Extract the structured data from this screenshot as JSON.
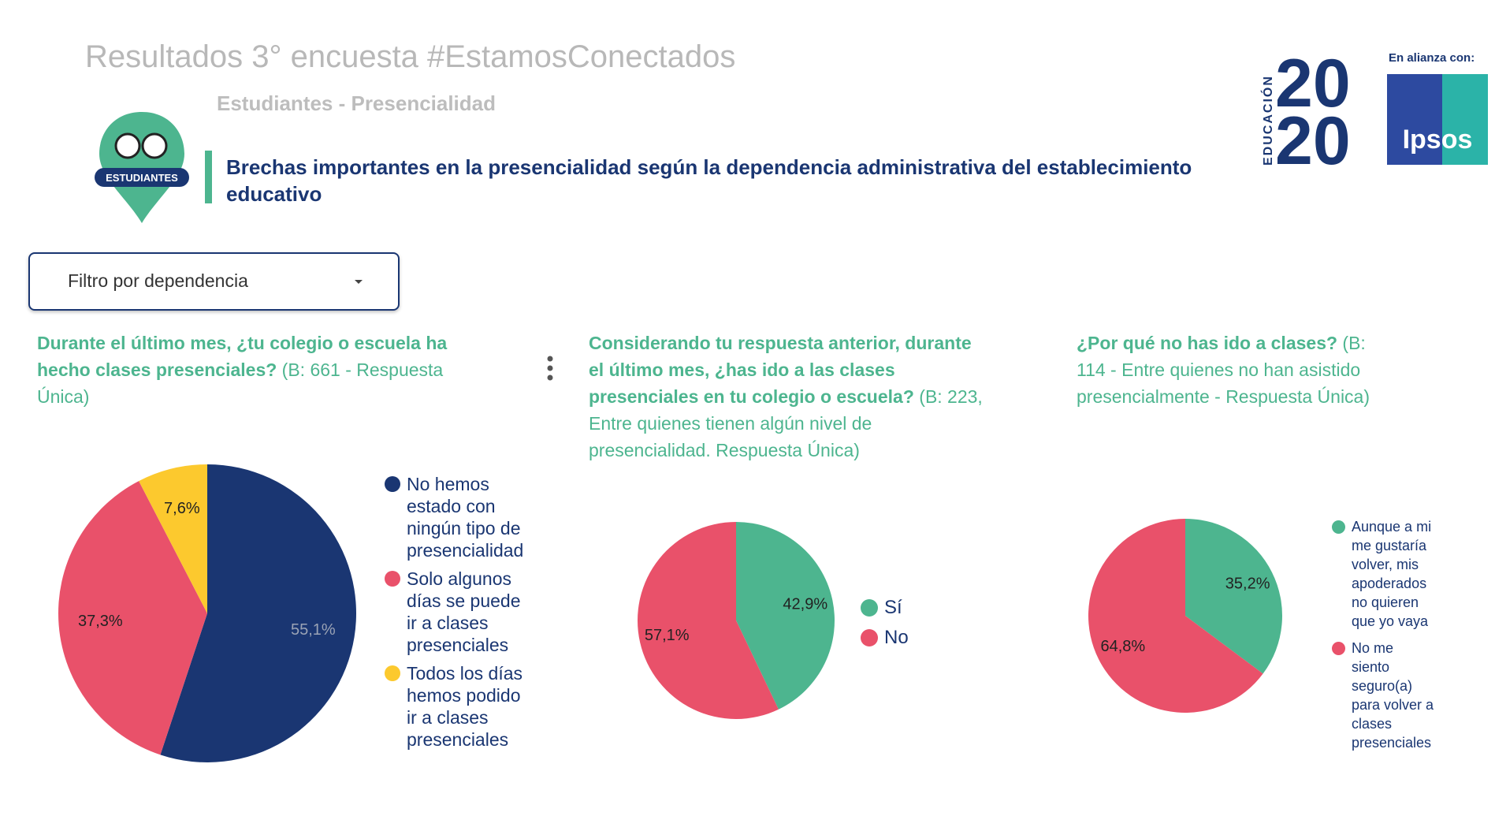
{
  "header": {
    "title": "Resultados 3° encuesta #EstamosConectados",
    "subtitle": "Estudiantes - Presencialidad",
    "headline": "Brechas importantes en la presencialidad según la dependencia administrativa del establecimiento educativo",
    "icon_label": "ESTUDIANTES",
    "logo_text": "EDUCACIÓN",
    "logo_top": "20",
    "logo_bottom": "20",
    "partner_label": "En alianza con:",
    "partner": "Ipsos"
  },
  "filter": {
    "label": "Filtro por dependencia"
  },
  "chart_data": [
    {
      "type": "pie",
      "title": "Durante el último mes, ¿tu colegio o escuela ha hecho clases presenciales?",
      "subtitle": "(B: 661 - Respuesta Única)",
      "categories": [
        "No hemos estado con ningún tipo de presencialidad",
        "Solo algunos días se puede ir a clases presenciales",
        "Todos los días hemos podido ir a clases presenciales"
      ],
      "values": [
        55.1,
        37.3,
        7.6
      ],
      "value_labels": [
        "55,1%",
        "37,3%",
        "7,6%"
      ],
      "colors": [
        "#1a3672",
        "#e9516a",
        "#fcc92e"
      ]
    },
    {
      "type": "pie",
      "title": "Considerando tu respuesta anterior, durante el último mes, ¿has ido a las clases presenciales en tu colegio o escuela?",
      "subtitle": "(B: 223, Entre quienes tienen algún nivel de presencialidad. Respuesta Única)",
      "categories": [
        "Sí",
        "No"
      ],
      "values": [
        42.9,
        57.1
      ],
      "value_labels": [
        "42,9%",
        "57,1%"
      ],
      "colors": [
        "#4db58f",
        "#e9516a"
      ]
    },
    {
      "type": "pie",
      "title": "¿Por qué no has ido a clases?",
      "subtitle": "(B: 114 - Entre quienes no han asistido presencialmente - Respuesta Única)",
      "categories": [
        "Aunque a mi me gustaría volver, mis apoderados no quieren que yo vaya",
        "No me siento seguro(a) para volver a clases presenciales"
      ],
      "values": [
        35.2,
        64.8
      ],
      "value_labels": [
        "35,2%",
        "64,8%"
      ],
      "colors": [
        "#4db58f",
        "#e9516a"
      ]
    }
  ]
}
